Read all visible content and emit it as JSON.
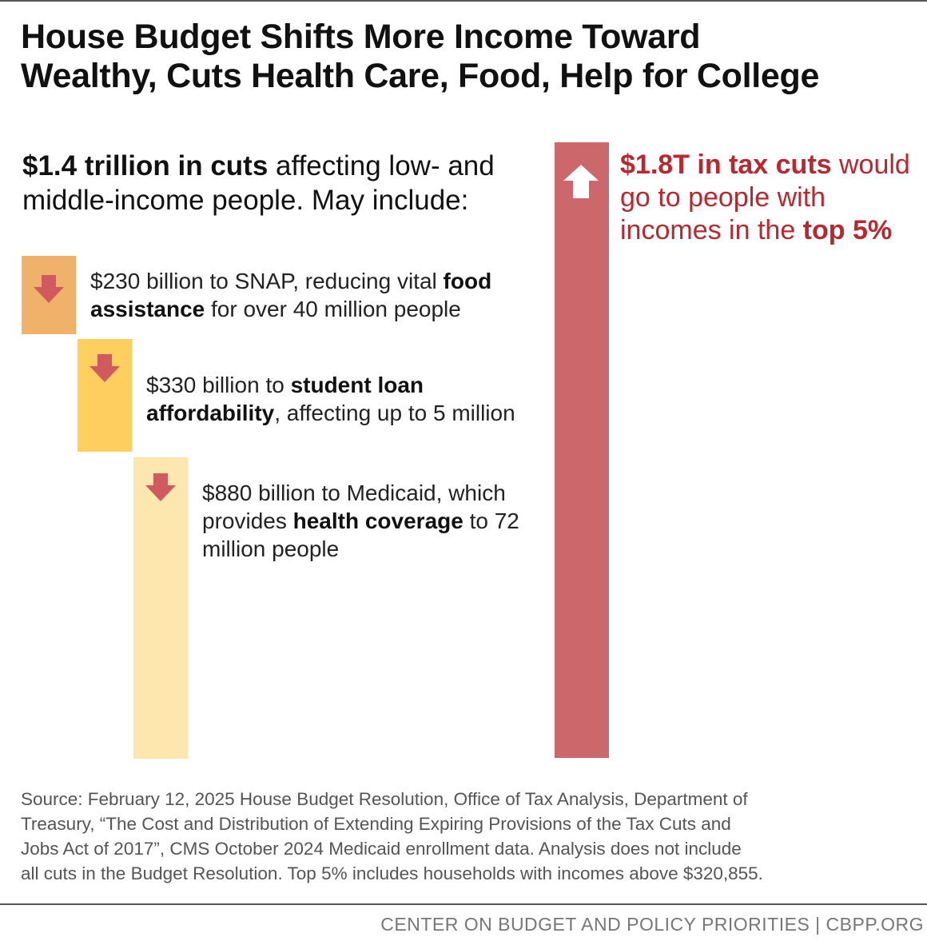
{
  "title": {
    "line1": "House Budget Shifts More Income Toward",
    "line2": "Wealthy, Cuts Health Care, Food, Help for College"
  },
  "cuts_heading": {
    "bold": "$1.4 trillion in cuts",
    "rest1": " affecting low- and",
    "line2": "middle-income people. May include:"
  },
  "items": [
    {
      "lead": "$230 billion to SNAP, reducing vital ",
      "bold": "food assistance",
      "tail": " for over 40 million people",
      "color": "#f0b26a"
    },
    {
      "lead": "$330 billion to ",
      "bold": "student loan affordability",
      "tail": ", affecting up to 5 million",
      "color": "#fecf5e"
    },
    {
      "lead": "$880 billion to Medicaid, which provides ",
      "bold": "health coverage",
      "tail": " to 72 million people",
      "color": "#fee7ae"
    }
  ],
  "tax": {
    "bold1": "$1.8T in tax cuts",
    "rest1": " would",
    "line2": "go to people with",
    "line3": "incomes in the ",
    "bold3": "top 5%",
    "color": "#cc686c"
  },
  "chart_data": {
    "type": "bar",
    "title": "House Budget Shifts More Income Toward Wealthy, Cuts Health Care, Food, Help for College",
    "categories": [
      "SNAP",
      "Student loan affordability",
      "Medicaid",
      "Tax cuts for top 5%"
    ],
    "series": [
      {
        "name": "Cuts (billions)",
        "values": [
          230,
          330,
          880,
          null
        ]
      },
      {
        "name": "Tax cuts (billions)",
        "values": [
          null,
          null,
          null,
          1800
        ]
      }
    ],
    "total_cuts_trillions": 1.4,
    "tax_cuts_trillions": 1.8,
    "units": "billions of dollars"
  },
  "source": {
    "line1": "Source: February 12, 2025 House Budget Resolution, Office of Tax Analysis, Department of",
    "line2": "Treasury, “The Cost and Distribution of Extending Expiring Provisions of the Tax Cuts and",
    "line3": "Jobs Act of 2017”, CMS October 2024 Medicaid enrollment data.  Analysis does not include",
    "line4": "all cuts in the Budget Resolution. Top 5% includes households with incomes above $320,855."
  },
  "footer": "CENTER ON BUDGET AND POLICY PRIORITIES | CBPP.ORG",
  "colors": {
    "arrow_down": "#d05a5f",
    "tax_text": "#b8282e",
    "source_text": "#555555"
  }
}
